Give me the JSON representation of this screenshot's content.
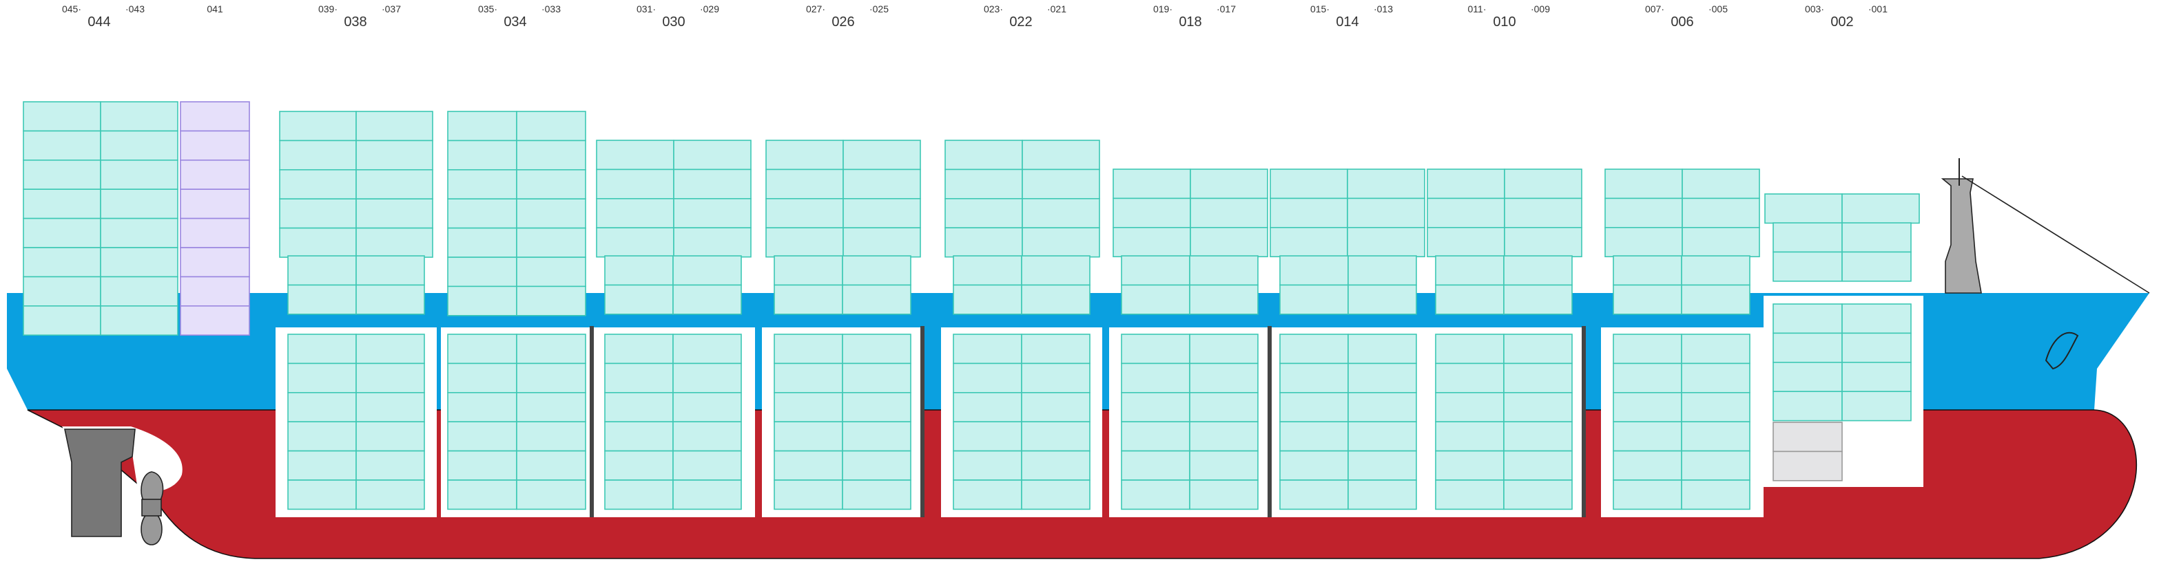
{
  "bays": [
    {
      "left": "045·",
      "label": "044",
      "right": "·043"
    },
    {
      "label": "041"
    },
    {
      "left": "039·",
      "label": "038",
      "right": "·037"
    },
    {
      "left": "035·",
      "label": "034",
      "right": "·033"
    },
    {
      "left": "031·",
      "label": "030",
      "right": "·029"
    },
    {
      "left": "027·",
      "label": "026",
      "right": "·025"
    },
    {
      "left": "023·",
      "label": "022",
      "right": "·021"
    },
    {
      "left": "019·",
      "label": "018",
      "right": "·017"
    },
    {
      "left": "015·",
      "label": "014",
      "right": "·013"
    },
    {
      "left": "011·",
      "label": "010",
      "right": "·009"
    },
    {
      "left": "007·",
      "label": "006",
      "right": "·005"
    },
    {
      "left": "003·",
      "label": "002",
      "right": "·001"
    }
  ]
}
